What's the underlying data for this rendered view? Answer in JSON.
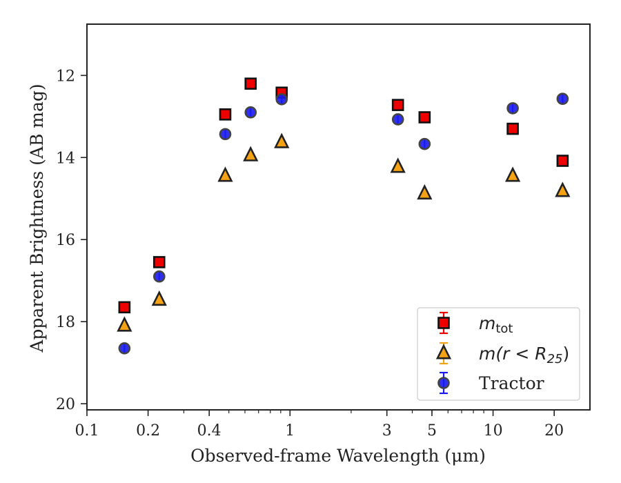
{
  "chart_data": {
    "type": "scatter",
    "title": "",
    "xlabel": "Observed-frame Wavelength (μm)",
    "ylabel": "Apparent Brightness (AB mag)",
    "xscale": "log",
    "xlim": [
      0.1,
      30
    ],
    "ylim": [
      20.15,
      10.75
    ],
    "y_inverted": true,
    "x_ticks": [
      {
        "value": 0.1,
        "label": "0.1"
      },
      {
        "value": 0.2,
        "label": "0.2"
      },
      {
        "value": 0.4,
        "label": "0.4"
      },
      {
        "value": 1,
        "label": "1"
      },
      {
        "value": 3,
        "label": "3"
      },
      {
        "value": 5,
        "label": "5"
      },
      {
        "value": 10,
        "label": "10"
      },
      {
        "value": 20,
        "label": "20"
      }
    ],
    "y_ticks": [
      {
        "value": 12,
        "label": "12"
      },
      {
        "value": 14,
        "label": "14"
      },
      {
        "value": 16,
        "label": "16"
      },
      {
        "value": 18,
        "label": "18"
      },
      {
        "value": 20,
        "label": "20"
      }
    ],
    "legend_position": "lower-right",
    "grid": false,
    "series": [
      {
        "name": "m_tot",
        "legend_label_main": "m",
        "legend_label_sub": "tot",
        "marker": "square",
        "face_color": "#ee0000",
        "edge_color": "#111111",
        "error_color": "#ee0000",
        "points": [
          {
            "x": 0.153,
            "y": 17.65
          },
          {
            "x": 0.227,
            "y": 16.55
          },
          {
            "x": 0.48,
            "y": 12.95
          },
          {
            "x": 0.64,
            "y": 12.2
          },
          {
            "x": 0.91,
            "y": 12.42
          },
          {
            "x": 3.4,
            "y": 12.72
          },
          {
            "x": 4.6,
            "y": 13.02
          },
          {
            "x": 12.5,
            "y": 13.3
          },
          {
            "x": 22.0,
            "y": 14.08
          }
        ]
      },
      {
        "name": "m(r < R25)",
        "legend_label_main": "m(r < R",
        "legend_label_sub": "25",
        "legend_label_end": ")",
        "marker": "triangle",
        "face_color": "#f5a214",
        "edge_color": "#222222",
        "error_color": "#f5a214",
        "points": [
          {
            "x": 0.153,
            "y": 18.1
          },
          {
            "x": 0.227,
            "y": 17.47
          },
          {
            "x": 0.48,
            "y": 14.45
          },
          {
            "x": 0.64,
            "y": 13.95
          },
          {
            "x": 0.91,
            "y": 13.63
          },
          {
            "x": 3.4,
            "y": 14.23
          },
          {
            "x": 4.6,
            "y": 14.88
          },
          {
            "x": 12.5,
            "y": 14.45
          },
          {
            "x": 22.0,
            "y": 14.82
          }
        ]
      },
      {
        "name": "Tractor",
        "marker": "circle",
        "face_color": "#1a1aee",
        "edge_color": "#444444",
        "error_color": "#1a1aee",
        "points": [
          {
            "x": 0.153,
            "y": 18.65
          },
          {
            "x": 0.227,
            "y": 16.9
          },
          {
            "x": 0.48,
            "y": 13.43
          },
          {
            "x": 0.64,
            "y": 12.9
          },
          {
            "x": 0.91,
            "y": 12.58
          },
          {
            "x": 3.4,
            "y": 13.07
          },
          {
            "x": 4.6,
            "y": 13.67
          },
          {
            "x": 12.5,
            "y": 12.8
          },
          {
            "x": 22.0,
            "y": 12.57
          }
        ]
      }
    ]
  }
}
